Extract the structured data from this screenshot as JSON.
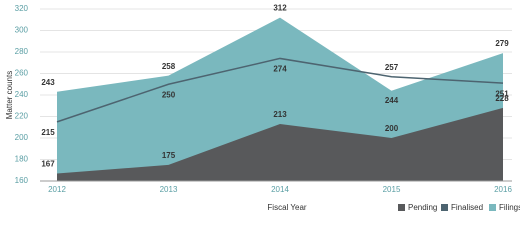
{
  "chart_data": {
    "type": "area",
    "x_label": "Fiscal Year",
    "y_label": "Matter counts",
    "categories": [
      "2012",
      "2013",
      "2014",
      "2015",
      "2016"
    ],
    "series": [
      {
        "name": "Pending",
        "color": "#58595b",
        "kind": "area",
        "values": [
          167,
          175,
          213,
          200,
          228
        ]
      },
      {
        "name": "Finalised",
        "color": "#4d6470",
        "kind": "line",
        "values": [
          215,
          250,
          274,
          257,
          251
        ]
      },
      {
        "name": "Filings",
        "color": "#7ab8be",
        "kind": "area",
        "values": [
          243,
          258,
          312,
          244,
          279
        ]
      }
    ],
    "ylim": [
      160,
      320
    ],
    "yticks": [
      160,
      180,
      200,
      220,
      240,
      260,
      280,
      300,
      320
    ],
    "grid": true
  }
}
